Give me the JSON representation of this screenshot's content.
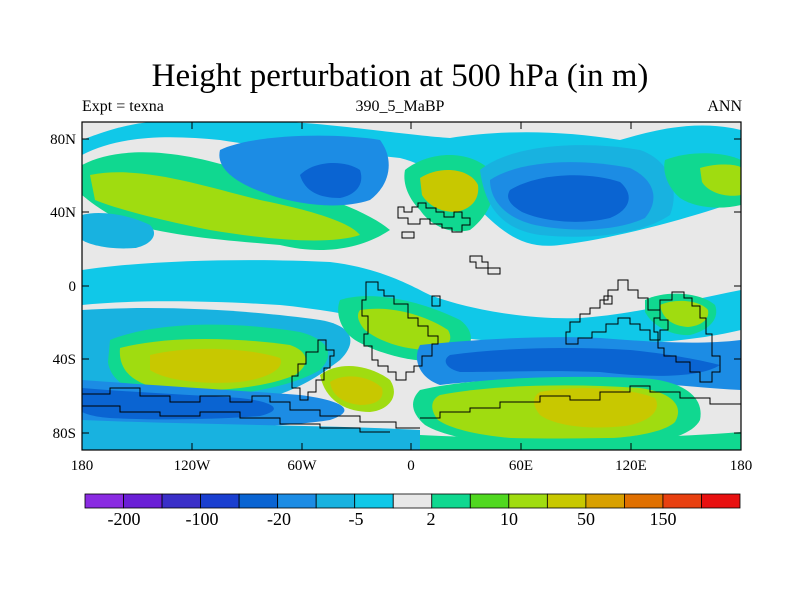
{
  "title": "Height perturbation at 500 hPa (in m)",
  "subtitle_left": "Expt = texna",
  "subtitle_center": "390_5_MaBP",
  "subtitle_right": "ANN",
  "lat_labels": [
    "80N",
    "40N",
    "0",
    "40S",
    "80S"
  ],
  "lon_labels": [
    "180",
    "120W",
    "60W",
    "0",
    "60E",
    "120E",
    "180"
  ],
  "colorbar": {
    "colors": [
      "#8a2be2",
      "#6a1fd6",
      "#3a2fc8",
      "#1a3fd0",
      "#0a64d2",
      "#1c8ce4",
      "#18b2e0",
      "#10c8e8",
      "#e8e8e8",
      "#10d890",
      "#50d820",
      "#a0dc10",
      "#c8c800",
      "#d8a000",
      "#e07000",
      "#e84010",
      "#e81010"
    ],
    "labels": [
      "-200",
      "-100",
      "-20",
      "-5",
      "2",
      "10",
      "50",
      "150"
    ]
  },
  "palette": {
    "bg": "#e8e8e8",
    "c1": "#10c8e8",
    "c2": "#18b2e0",
    "c3": "#1c8ce4",
    "c4": "#0a64d2",
    "p1": "#10d890",
    "p2": "#50d820",
    "p3": "#a0dc10",
    "p4": "#c8c800"
  }
}
